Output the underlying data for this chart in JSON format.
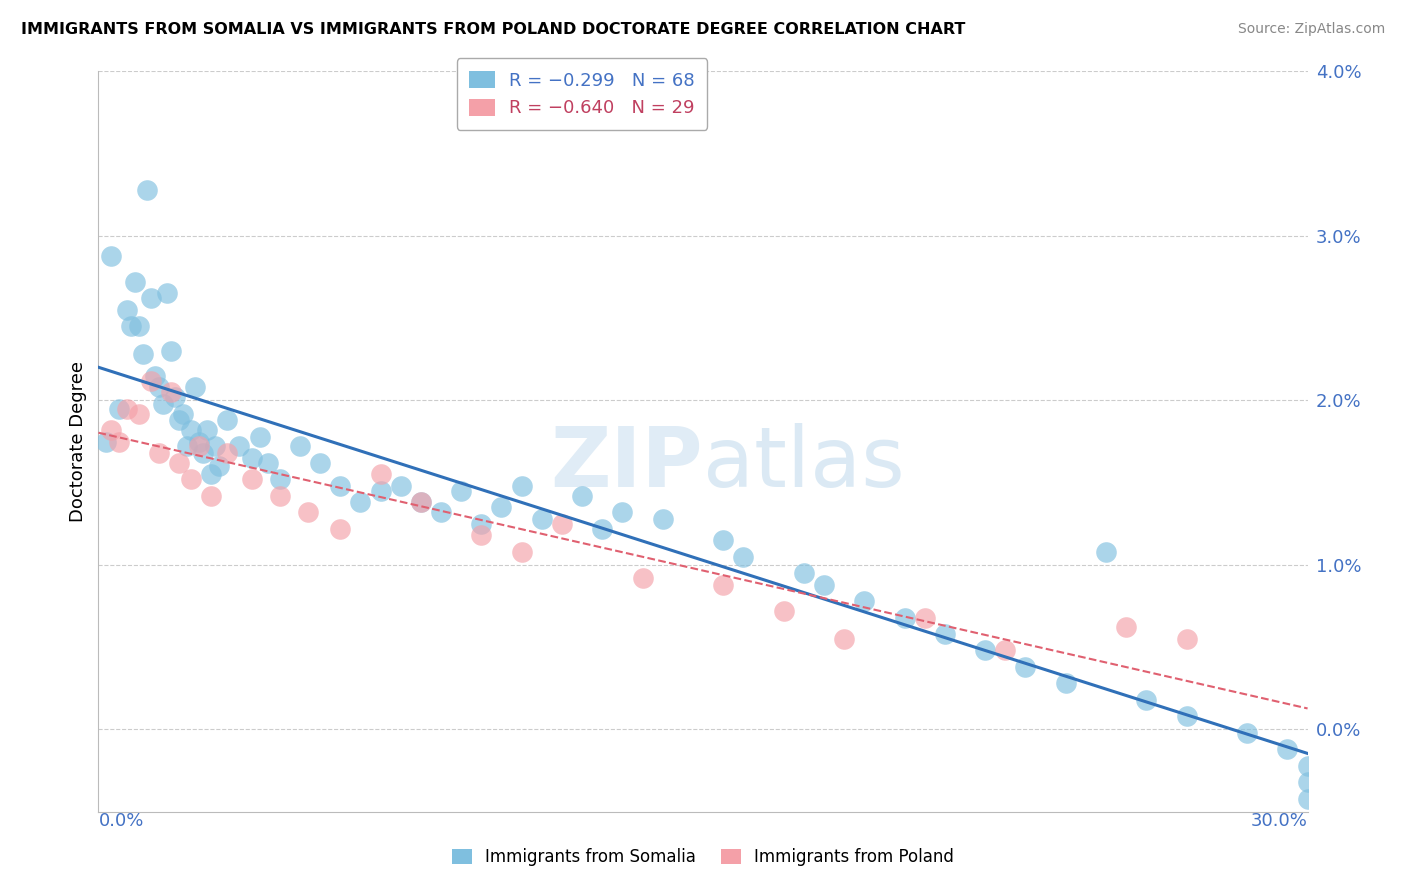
{
  "title": "IMMIGRANTS FROM SOMALIA VS IMMIGRANTS FROM POLAND DOCTORATE DEGREE CORRELATION CHART",
  "source": "Source: ZipAtlas.com",
  "ylabel": "Doctorate Degree",
  "xlim": [
    0.0,
    30.0
  ],
  "ylim": [
    -0.5,
    4.0
  ],
  "yticks": [
    0.0,
    1.0,
    2.0,
    3.0,
    4.0
  ],
  "ytick_labels": [
    "0.0%",
    "1.0%",
    "2.0%",
    "3.0%",
    "4.0%"
  ],
  "legend_somalia": "R = -0.299   N = 68",
  "legend_poland": "R = -0.640   N = 29",
  "somalia_color": "#7fbfdf",
  "poland_color": "#f4a0a8",
  "regression_somalia_color": "#3070b8",
  "regression_poland_color": "#e06070",
  "watermark_text": "ZIPatlas",
  "somalia_x": [
    0.2,
    0.3,
    0.5,
    0.7,
    0.8,
    0.9,
    1.0,
    1.1,
    1.2,
    1.3,
    1.4,
    1.5,
    1.6,
    1.7,
    1.8,
    1.9,
    2.0,
    2.1,
    2.2,
    2.3,
    2.4,
    2.5,
    2.6,
    2.7,
    2.8,
    2.9,
    3.0,
    3.2,
    3.5,
    3.8,
    4.0,
    4.2,
    4.5,
    5.0,
    5.5,
    6.0,
    6.5,
    7.0,
    7.5,
    8.0,
    8.5,
    9.0,
    9.5,
    10.0,
    10.5,
    11.0,
    12.0,
    12.5,
    13.0,
    14.0,
    15.5,
    16.0,
    17.5,
    18.0,
    19.0,
    20.0,
    21.0,
    22.0,
    23.0,
    24.0,
    25.0,
    26.0,
    27.0,
    28.5,
    29.5,
    30.0,
    30.0,
    30.0
  ],
  "somalia_y": [
    1.75,
    2.88,
    1.95,
    2.55,
    2.45,
    2.72,
    2.45,
    2.28,
    3.28,
    2.62,
    2.15,
    2.08,
    1.98,
    2.65,
    2.3,
    2.02,
    1.88,
    1.92,
    1.72,
    1.82,
    2.08,
    1.75,
    1.68,
    1.82,
    1.55,
    1.72,
    1.6,
    1.88,
    1.72,
    1.65,
    1.78,
    1.62,
    1.52,
    1.72,
    1.62,
    1.48,
    1.38,
    1.45,
    1.48,
    1.38,
    1.32,
    1.45,
    1.25,
    1.35,
    1.48,
    1.28,
    1.42,
    1.22,
    1.32,
    1.28,
    1.15,
    1.05,
    0.95,
    0.88,
    0.78,
    0.68,
    0.58,
    0.48,
    0.38,
    0.28,
    1.08,
    0.18,
    0.08,
    -0.02,
    -0.12,
    -0.22,
    -0.32,
    -0.42
  ],
  "poland_x": [
    0.3,
    0.5,
    0.7,
    1.0,
    1.3,
    1.5,
    1.8,
    2.0,
    2.3,
    2.5,
    2.8,
    3.2,
    3.8,
    4.5,
    5.2,
    6.0,
    7.0,
    8.0,
    9.5,
    10.5,
    11.5,
    13.5,
    15.5,
    17.0,
    18.5,
    20.5,
    22.5,
    25.5,
    27.0
  ],
  "poland_y": [
    1.82,
    1.75,
    1.95,
    1.92,
    2.12,
    1.68,
    2.05,
    1.62,
    1.52,
    1.72,
    1.42,
    1.68,
    1.52,
    1.42,
    1.32,
    1.22,
    1.55,
    1.38,
    1.18,
    1.08,
    1.25,
    0.92,
    0.88,
    0.72,
    0.55,
    0.68,
    0.48,
    0.62,
    0.55
  ],
  "regression_somalia": [
    1.75,
    -0.058
  ],
  "regression_poland": [
    1.7,
    -0.055
  ]
}
